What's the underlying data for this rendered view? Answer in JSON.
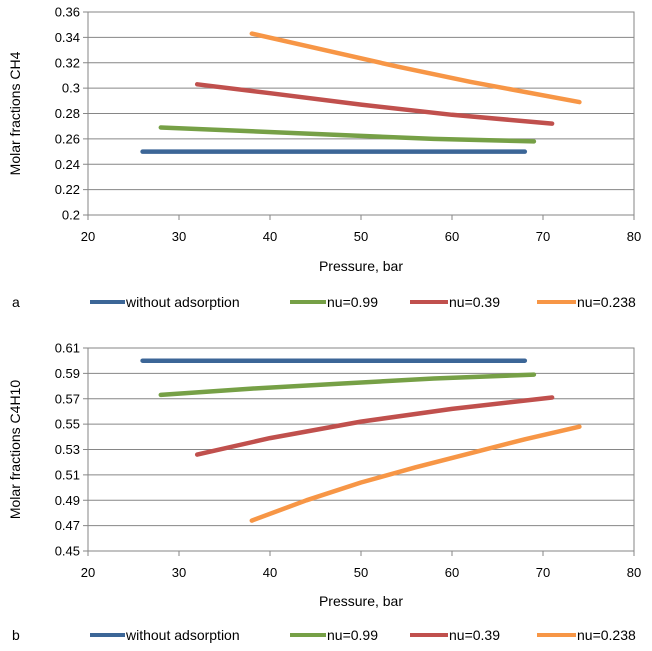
{
  "colors": {
    "without_adsorption": "#3c6697",
    "nu_0_99": "#76a046",
    "nu_0_39": "#c0504d",
    "nu_0_238": "#f79646",
    "axis": "#868686",
    "grid": "#868686"
  },
  "chart_data": [
    {
      "type": "line",
      "panel_label": "a",
      "xlabel": "Pressure, bar",
      "ylabel": "Molar fractions CH4",
      "xlim": [
        20,
        80
      ],
      "ylim": [
        0.2,
        0.36
      ],
      "xticks": [
        20,
        30,
        40,
        50,
        60,
        70,
        80
      ],
      "xtick_labels": [
        "20",
        "30",
        "40",
        "50",
        "60",
        "70",
        "80"
      ],
      "yticks": [
        0.2,
        0.22,
        0.24,
        0.26,
        0.28,
        0.3,
        0.32,
        0.34,
        0.36
      ],
      "ytick_labels": [
        "0.2",
        "0.22",
        "0.24",
        "0.26",
        "0.28",
        "0.3",
        "0.32",
        "0.34",
        "0.36"
      ],
      "grid": "horizontal",
      "legend_position": "bottom",
      "series": [
        {
          "name": "without adsorption",
          "color_key": "without_adsorption",
          "x": [
            26,
            47,
            68
          ],
          "y": [
            0.25,
            0.25,
            0.25
          ]
        },
        {
          "name": "nu=0.99",
          "color_key": "nu_0_99",
          "x": [
            28,
            38,
            48,
            58,
            69
          ],
          "y": [
            0.269,
            0.266,
            0.263,
            0.26,
            0.258
          ]
        },
        {
          "name": "nu=0.39",
          "color_key": "nu_0_39",
          "x": [
            32,
            40,
            50,
            60,
            71
          ],
          "y": [
            0.303,
            0.296,
            0.287,
            0.279,
            0.272
          ]
        },
        {
          "name": "nu=0.238",
          "color_key": "nu_0_238",
          "x": [
            38,
            46,
            54,
            62,
            74
          ],
          "y": [
            0.343,
            0.33,
            0.317,
            0.305,
            0.289
          ]
        }
      ]
    },
    {
      "type": "line",
      "panel_label": "b",
      "xlabel": "Pressure, bar",
      "ylabel": "Molar fractions C4H10",
      "xlim": [
        20,
        80
      ],
      "ylim": [
        0.45,
        0.61
      ],
      "xticks": [
        20,
        30,
        40,
        50,
        60,
        70,
        80
      ],
      "xtick_labels": [
        "20",
        "30",
        "40",
        "50",
        "60",
        "70",
        "80"
      ],
      "yticks": [
        0.45,
        0.47,
        0.49,
        0.51,
        0.53,
        0.55,
        0.57,
        0.59,
        0.61
      ],
      "ytick_labels": [
        "0.45",
        "0.47",
        "0.49",
        "0.51",
        "0.53",
        "0.55",
        "0.57",
        "0.59",
        "0.61"
      ],
      "grid": "horizontal",
      "legend_position": "bottom",
      "series": [
        {
          "name": "without adsorption",
          "color_key": "without_adsorption",
          "x": [
            26,
            47,
            68
          ],
          "y": [
            0.6,
            0.6,
            0.6
          ]
        },
        {
          "name": "nu=0.99",
          "color_key": "nu_0_99",
          "x": [
            28,
            38,
            48,
            58,
            69
          ],
          "y": [
            0.573,
            0.578,
            0.582,
            0.586,
            0.589
          ]
        },
        {
          "name": "nu=0.39",
          "color_key": "nu_0_39",
          "x": [
            32,
            40,
            50,
            60,
            71
          ],
          "y": [
            0.526,
            0.539,
            0.552,
            0.562,
            0.571
          ]
        },
        {
          "name": "nu=0.238",
          "color_key": "nu_0_238",
          "x": [
            38,
            44,
            50,
            56,
            62,
            68,
            74
          ],
          "y": [
            0.474,
            0.49,
            0.504,
            0.516,
            0.527,
            0.538,
            0.548
          ]
        }
      ]
    }
  ]
}
